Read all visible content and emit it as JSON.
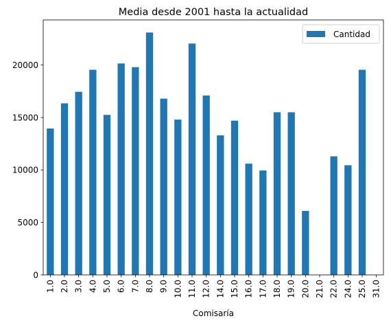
{
  "chart_data": {
    "type": "bar",
    "title": "Media desde 2001 hasta la actualidad",
    "xlabel": "Comisaría",
    "ylabel": "",
    "categories": [
      "1.0",
      "2.0",
      "3.0",
      "4.0",
      "5.0",
      "6.0",
      "7.0",
      "8.0",
      "9.0",
      "10.0",
      "11.0",
      "12.0",
      "14.0",
      "15.0",
      "16.0",
      "17.0",
      "18.0",
      "19.0",
      "20.0",
      "21.0",
      "22.0",
      "24.0",
      "25.0",
      "31.0"
    ],
    "series": [
      {
        "name": "Cantidad",
        "color": "#1f77b4",
        "values": [
          13950,
          16350,
          17450,
          19550,
          15250,
          20150,
          19800,
          23100,
          16800,
          14800,
          22050,
          17100,
          13300,
          14700,
          10600,
          9950,
          15500,
          15500,
          6100,
          0,
          11300,
          10450,
          19550,
          0
        ]
      }
    ],
    "ylim": [
      0,
      24300
    ],
    "yticks": [
      0,
      5000,
      10000,
      15000,
      20000
    ],
    "legend": {
      "position": "top-right",
      "entries": [
        "Cantidad"
      ]
    },
    "grid": false
  }
}
